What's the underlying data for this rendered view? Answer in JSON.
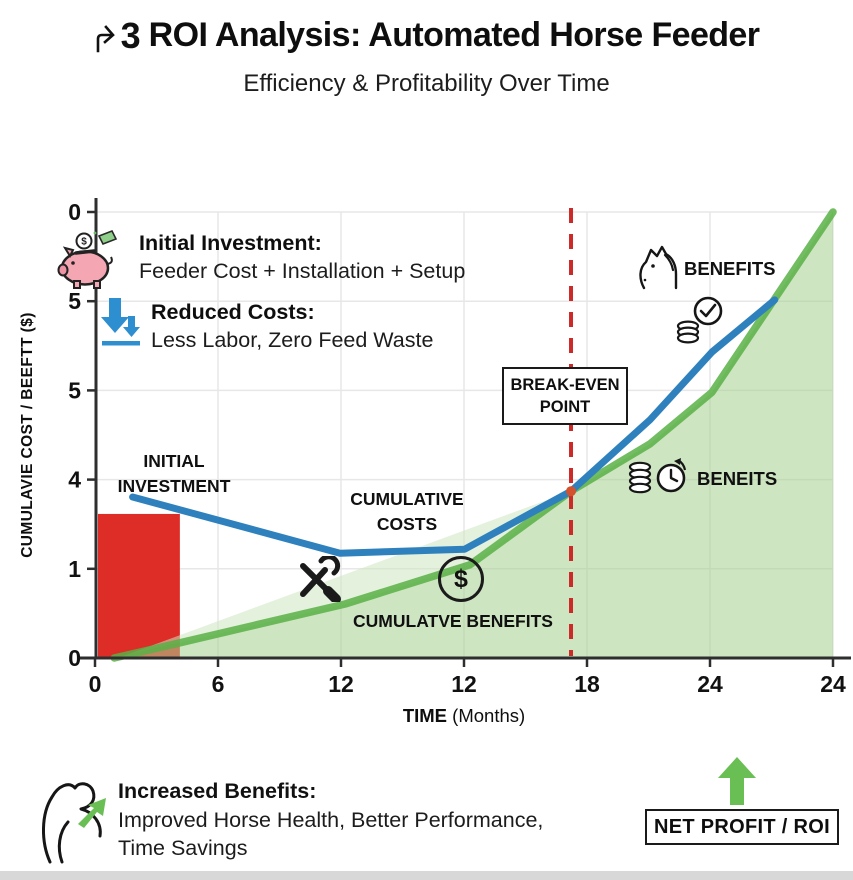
{
  "header": {
    "title": "ROI Analysis: Automated Horse Feeder",
    "title_glyph": "3",
    "subtitle": "Efficiency & Profitability Over Time"
  },
  "colors": {
    "costs_line": "#2f81bd",
    "benefits_line": "#59b046",
    "benefits_fill": "#a6d090",
    "benefits_fill_light": "#cce6c1",
    "investment_bar": "#dd2d26",
    "break_even_line": "#cc2a28",
    "break_even_dot": "#d4512e",
    "grid": "#e7e7e7",
    "axis": "#2e2e2e",
    "net_profit_arrow": "#6abf54",
    "bottom_bar": "#d8d8d8"
  },
  "legend": {
    "initial_investment": {
      "icon": "piggy-bank-icon",
      "title": "Initial Investment:",
      "desc": "Feeder Cost + Installation + Setup"
    },
    "reduced_costs": {
      "icon": "down-arrows-icon",
      "title": "Reduced Costs:",
      "desc": "Less Labor, Zero Feed Waste"
    }
  },
  "chart_data": {
    "type": "line",
    "title": "ROI Analysis: Automated Horse Feeder",
    "xlabel_bold": "TIME",
    "xlabel_rest": " (Months)",
    "ylabel": "CUMULAVIE COST / BEEFTT ($)",
    "x_ticks": [
      "0",
      "6",
      "12",
      "12",
      "18",
      "24",
      "24"
    ],
    "y_ticks": [
      "0",
      "5",
      "5",
      "4",
      "1",
      "0"
    ],
    "grid": true,
    "axes_note": "x normalized 0-1 across plot, y normalized 0-1 bottom-to-top (axis tick text is as printed in image)",
    "series": [
      {
        "name": "CUMULATIVE COSTS",
        "type": "line",
        "color": "#2f81bd",
        "points": [
          [
            0.051,
            0.361
          ],
          [
            0.332,
            0.235
          ],
          [
            0.501,
            0.244
          ],
          [
            0.645,
            0.374
          ],
          [
            0.752,
            0.534
          ],
          [
            0.836,
            0.686
          ],
          [
            0.921,
            0.803
          ]
        ]
      },
      {
        "name": "CUMULATVE BENEFITS",
        "type": "line+area",
        "color": "#59b046",
        "points": [
          [
            0.026,
            0.0
          ],
          [
            0.115,
            0.034
          ],
          [
            0.339,
            0.121
          ],
          [
            0.508,
            0.209
          ],
          [
            0.645,
            0.374
          ],
          [
            0.752,
            0.48
          ],
          [
            0.836,
            0.596
          ],
          [
            1.0,
            1.0
          ]
        ]
      }
    ],
    "area_edge": [
      [
        0.031,
        0.0
      ],
      [
        0.645,
        0.374
      ]
    ],
    "investment_bar": {
      "x0": 0.004,
      "x1": 0.115,
      "height": 0.323
    },
    "break_even": {
      "x": 0.645,
      "y": 0.374
    }
  },
  "labels": {
    "initial_investment_1": "INITIAL",
    "initial_investment_2": "INVESTMENT",
    "cumulative_costs_1": "CUMULATIVE",
    "cumulative_costs_2": "COSTS",
    "cumulative_benefits": "CUMULATVE BENEFITS",
    "break_even_1": "BREAK-EVEN",
    "break_even_2": "POINT",
    "benefits_upper": "BENEFITS",
    "benefits_lower": "BENEITS",
    "dollar": "$"
  },
  "footer": {
    "increased_benefits": {
      "icon": "flex-arm-icon",
      "title": "Increased Benefits:",
      "desc_line1": "Improved Horse Health, Better Performance,",
      "desc_line2": "Time Savings"
    },
    "net_profit_label": "NET PROFIT / ROI",
    "net_profit_icon": "up-arrow-icon"
  },
  "icons": [
    "piggy-bank-icon",
    "down-arrows-icon",
    "tools-icon",
    "dollar-circle-icon",
    "horse-icon",
    "coins-check-icon",
    "coins-clock-icon",
    "flex-arm-icon",
    "up-arrow-icon",
    "title-glyph-icon"
  ]
}
